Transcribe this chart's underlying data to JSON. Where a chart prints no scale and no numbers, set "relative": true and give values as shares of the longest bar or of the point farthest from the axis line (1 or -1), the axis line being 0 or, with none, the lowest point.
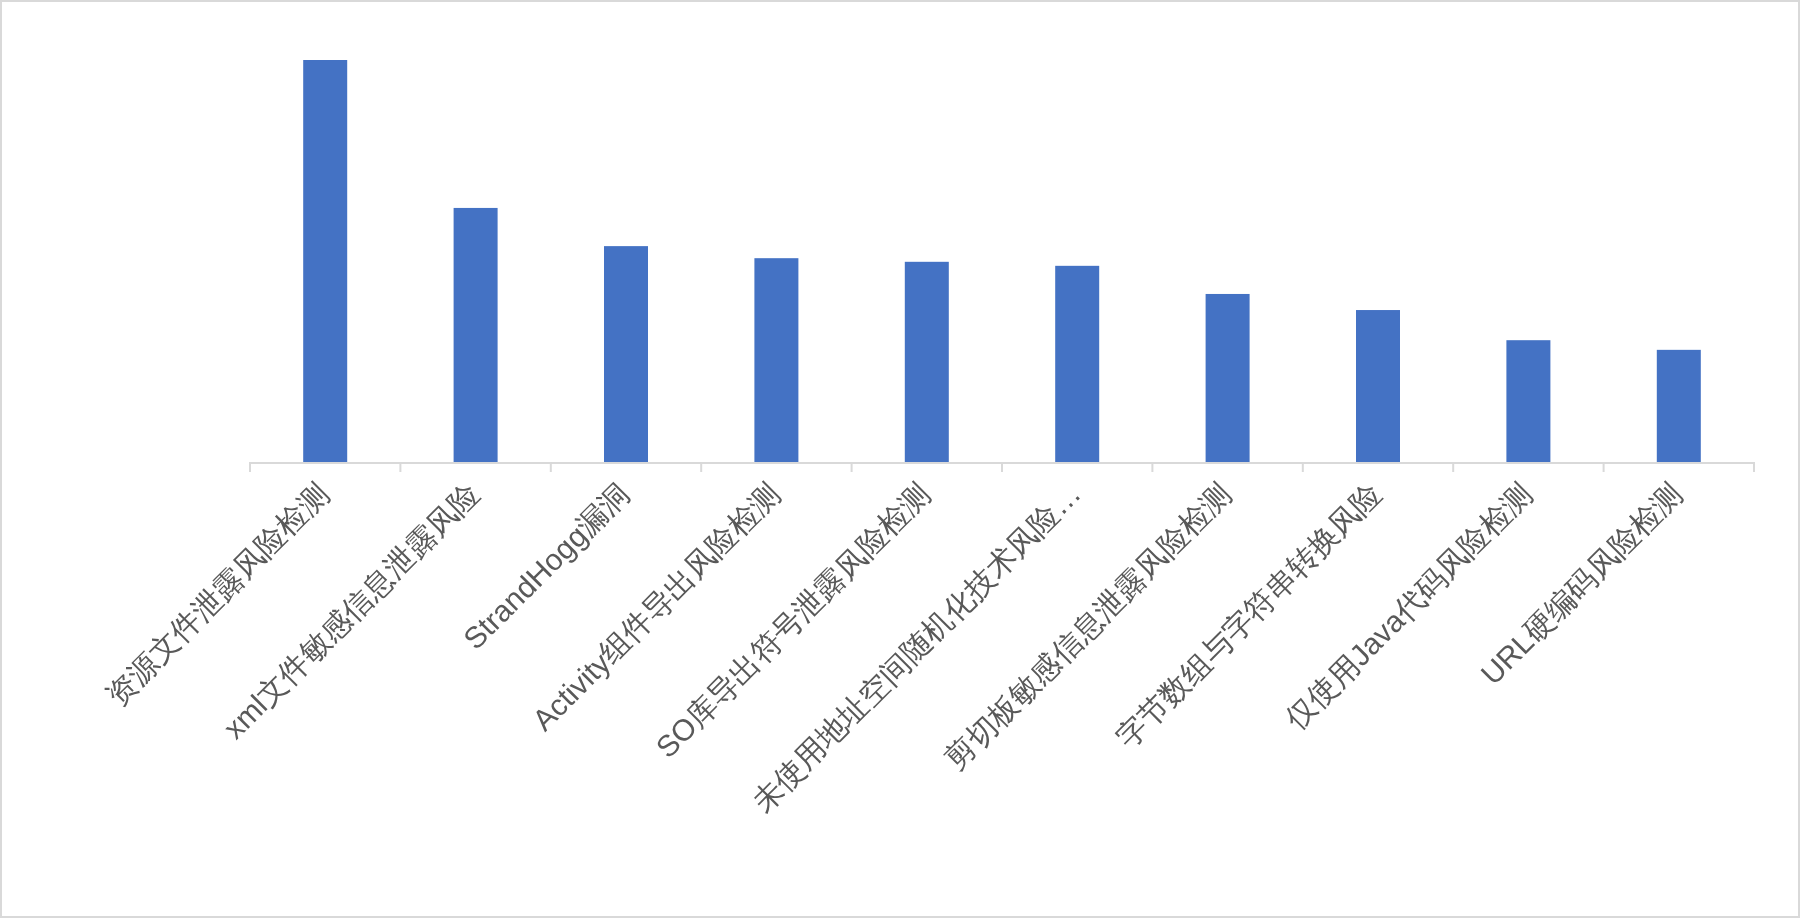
{
  "chart_data": {
    "type": "bar",
    "relative": true,
    "color": "#4472c4",
    "categories": [
      "资源文件泄露风险检测",
      "xml文件敏感信息泄露风险",
      "StrandHogg漏洞",
      "Activity组件导出风险检测",
      "SO库导出符号泄露风险检测",
      "未使用地址空间随机化技术风险…",
      "剪切板敏感信息泄露风险检测",
      "字节数组与字符串转换风险",
      "仅使用Java代码风险检测",
      "URL硬编码风险检测"
    ],
    "values": [
      1,
      0.632,
      0.537,
      0.507,
      0.498,
      0.488,
      0.418,
      0.378,
      0.303,
      0.279
    ],
    "data_labels": false
  }
}
